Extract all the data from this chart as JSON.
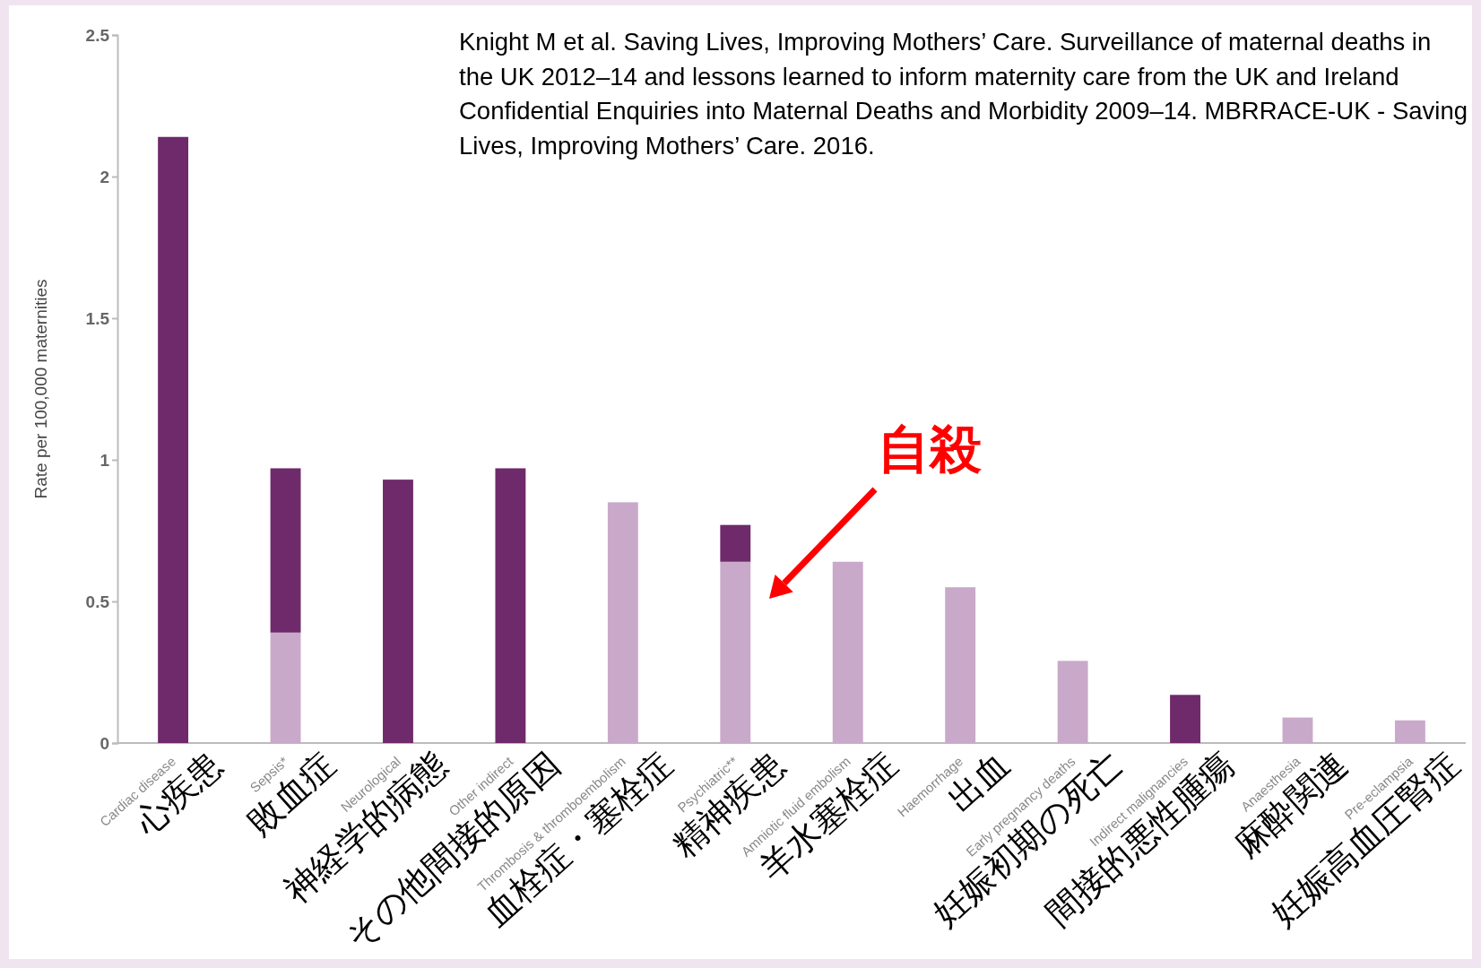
{
  "chart_data": {
    "type": "bar",
    "stacked": true,
    "ylabel": "Rate per 100,000 maternities",
    "categories": [
      "Cardiac disease\n心疾患",
      "Sepsis*\n敗血症",
      "Neurological\n神経学的病態",
      "Other indirect\nその他間接的原因",
      "Thrombosis & thromboembolism\n血栓症・塞栓症",
      "Psychiatric**\n精神疾患",
      "Amniotic fluid embolism\n羊水塞栓症",
      "Haemorrhage\n出血",
      "Early pregnancy deaths\n妊娠初期の死亡",
      "Indirect malignancies\n間接的悪性腫瘍",
      "Anaesthesia\n麻酔関連",
      "Pre-eclampsia\n妊娠高血圧腎症"
    ],
    "series": [
      {
        "color": "#c9a9c9",
        "values": [
          0,
          0.39,
          0,
          0,
          0.85,
          0.64,
          0.64,
          0.55,
          0.29,
          0,
          0.09,
          0.08
        ]
      },
      {
        "color": "#6e2a6b",
        "values": [
          2.14,
          0.58,
          0.93,
          0.97,
          0,
          0.13,
          0,
          0,
          0,
          0.17,
          0,
          0
        ]
      }
    ],
    "ylim": [
      0,
      2.5
    ],
    "yticks": [
      0,
      0.5,
      1,
      1.5,
      2,
      2.5
    ],
    "grid": false,
    "annotations": [
      "Knight M et al. Saving Lives, Improving Mothers’ Care. Surveillance of maternal deaths in the UK 2012–14 and lessons learned to inform maternity care from the UK and Ireland Confidential Enquiries into Maternal Deaths and Morbidity 2009–14. MBRRACE-UK - Saving Lives, Improving Mothers’ Care. 2016.",
      "自殺"
    ]
  }
}
